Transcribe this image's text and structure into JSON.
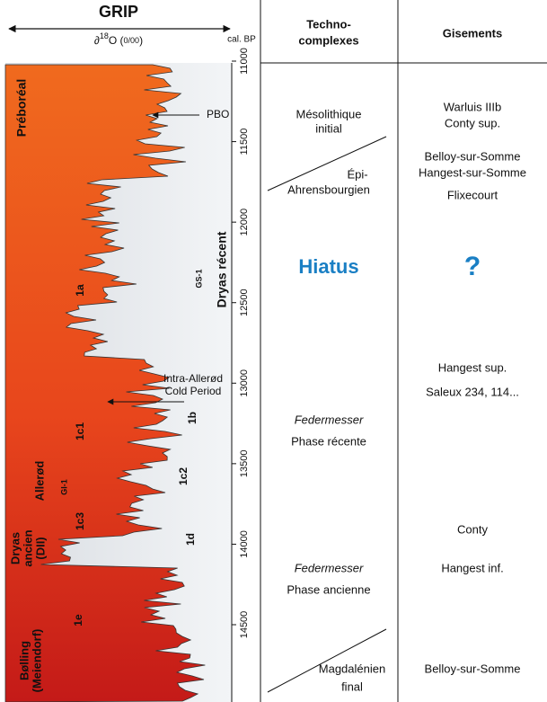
{
  "grip": {
    "title": "GRIP",
    "proxy": [
      "∂",
      "18",
      "O (",
      "0/00",
      ")"
    ],
    "axis_unit": "cal. BP",
    "ylim": [
      11000,
      14500
    ],
    "ticks": [
      11000,
      11500,
      12000,
      12500,
      13000,
      13500,
      14000,
      14500
    ],
    "periods": [
      [
        "Préboréal"
      ],
      [
        "Dryas récent"
      ],
      [
        "GS-1"
      ],
      [
        "Allerød"
      ],
      [
        "GI-1"
      ],
      [
        "Dryas",
        "ancien",
        "(DII)"
      ],
      [
        "Bølling",
        "(Meiendorf)"
      ]
    ],
    "subphases": [
      "1a",
      "1b",
      "1c1",
      "1c2",
      "1c3",
      "1d",
      "1e"
    ],
    "annotations": [
      [
        "PBO"
      ],
      [
        "Intra-Allerød",
        "Cold Period"
      ]
    ]
  },
  "columns": [
    {
      "header": [
        "Techno-",
        "complexes"
      ],
      "entries": [
        [
          "Mésolithique",
          "initial"
        ],
        [
          "Épi-",
          "Ahrensbourgien"
        ],
        [
          "Hiatus"
        ],
        [
          "Federmesser",
          "Phase récente"
        ],
        [
          "Federmesser",
          "Phase ancienne"
        ],
        [
          "Magdalénien",
          "final"
        ]
      ]
    },
    {
      "header": [
        "Gisements"
      ],
      "entries": [
        [
          "Warluis IIIb",
          "Conty sup."
        ],
        [
          "Belloy-sur-Somme",
          "Hangest-sur-Somme",
          "Flixecourt"
        ],
        [
          "?"
        ],
        [
          "Hangest sup."
        ],
        [
          "Saleux 234, 114..."
        ],
        [
          "Conty"
        ],
        [
          "Hangest inf."
        ],
        [
          "Belloy-sur-Somme"
        ]
      ]
    }
  ]
}
